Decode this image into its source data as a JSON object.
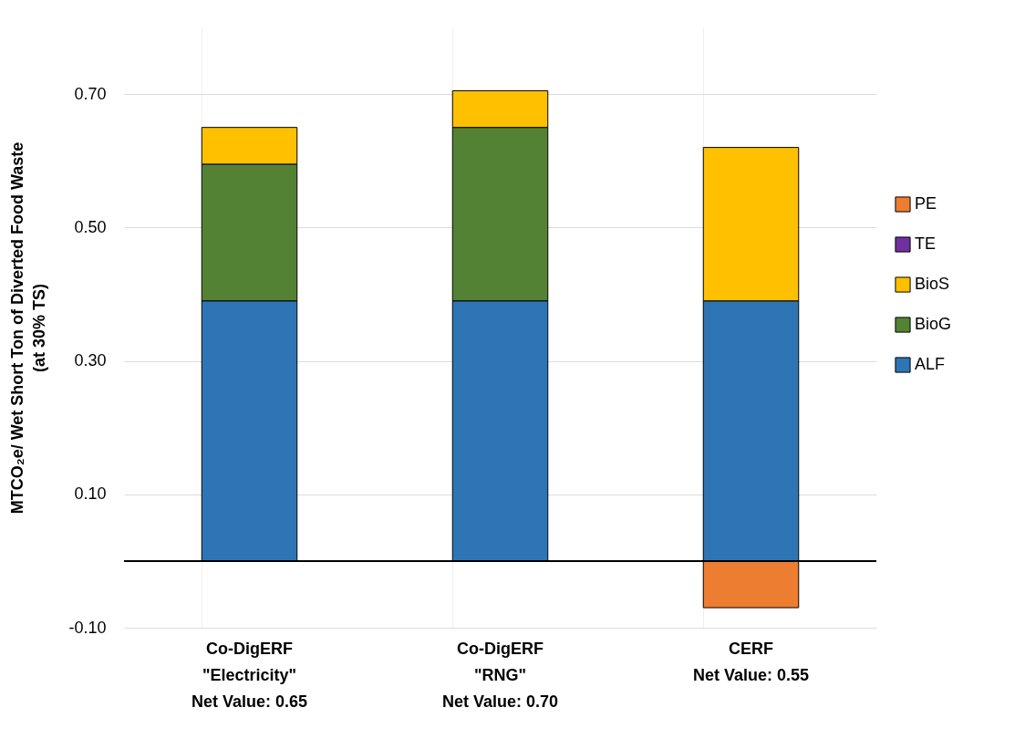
{
  "chart_data": {
    "type": "bar",
    "stacked": true,
    "ylabel": "MTCO₂e/ Wet Short Ton of Diverted Food Waste\n(at 30% TS)",
    "categories": [
      "Co-DigERF\n\"Electricity\"\nNet Value: 0.65",
      "Co-DigERF\n\"RNG\"\nNet Value: 0.70",
      "CERF\n\nNet Value: 0.55"
    ],
    "series": [
      {
        "name": "ALF",
        "color": "#2e75b6",
        "values": [
          0.39,
          0.39,
          0.39
        ]
      },
      {
        "name": "BioG",
        "color": "#548235",
        "values": [
          0.205,
          0.26,
          null
        ]
      },
      {
        "name": "BioS",
        "color": "#ffc000",
        "values": [
          0.055,
          0.055,
          0.23
        ]
      },
      {
        "name": "TE",
        "color": "#7030a0",
        "values": [
          null,
          null,
          null
        ]
      },
      {
        "name": "PE",
        "color": "#ed7d31",
        "values": [
          null,
          null,
          -0.07
        ]
      }
    ],
    "ylim": [
      -0.1,
      0.8
    ],
    "yticks": [
      {
        "value": -0.1,
        "label": "-0.10"
      },
      {
        "value": 0.1,
        "label": "0.10"
      },
      {
        "value": 0.3,
        "label": "0.30"
      },
      {
        "value": 0.5,
        "label": "0.50"
      },
      {
        "value": 0.7,
        "label": "0.70"
      }
    ],
    "grid": true,
    "legend": "right"
  }
}
